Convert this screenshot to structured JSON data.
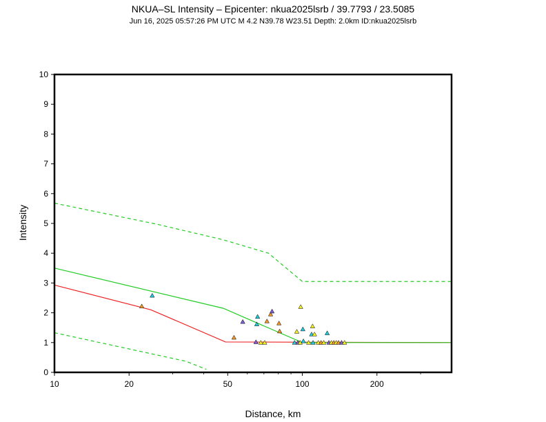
{
  "chart_data": {
    "type": "scatter",
    "title": "NKUA–SL Intensity –  Epicenter: nkua2025lsrb / 39.7793 / 23.5085",
    "subtitle": "Jun 16, 2025 05:57:26 PM UTC   M 4.2   N39.78 W23.51   Depth: 2.0km   ID:nkua2025lsrb",
    "xlabel": "Distance, km",
    "ylabel": "Intensity",
    "x_scale": "log",
    "xlim": [
      10,
      400
    ],
    "ylim": [
      0,
      10
    ],
    "x_ticks": [
      10,
      20,
      50,
      100,
      200
    ],
    "y_ticks": [
      0,
      1,
      2,
      3,
      4,
      5,
      6,
      7,
      8,
      9,
      10
    ],
    "grid": false,
    "colors": {
      "red_curve": "#ee2222",
      "green_curve": "#22cc22",
      "green_dashed": "#22cc22",
      "marker_cyan": "#22c8d8",
      "marker_yellow": "#f2ee22",
      "marker_orange": "#f0962a",
      "marker_purple": "#7f5fcf",
      "marker_outline": "#000000"
    },
    "series": [
      {
        "style": "red-solid",
        "x": [
          10,
          24.5,
          49,
          400
        ],
        "values": [
          2.93,
          2.1,
          1.02,
          1.0
        ]
      },
      {
        "style": "green-solid",
        "x": [
          10,
          48,
          100,
          400
        ],
        "values": [
          3.5,
          2.15,
          1.0,
          1.0
        ]
      },
      {
        "style": "green-dashed",
        "x": [
          10,
          26,
          48,
          73,
          100,
          400
        ],
        "values": [
          5.68,
          4.97,
          4.45,
          4.0,
          3.05,
          3.05
        ]
      },
      {
        "style": "green-dashed",
        "x": [
          10,
          34,
          41
        ],
        "values": [
          1.33,
          0.37,
          0.1
        ]
      }
    ],
    "points": [
      {
        "x": 22.5,
        "y": 2.22,
        "c": "orange"
      },
      {
        "x": 24.8,
        "y": 2.58,
        "c": "cyan"
      },
      {
        "x": 53,
        "y": 1.17,
        "c": "orange"
      },
      {
        "x": 57.5,
        "y": 1.7,
        "c": "purple"
      },
      {
        "x": 65,
        "y": 1.02,
        "c": "purple"
      },
      {
        "x": 65.5,
        "y": 1.62,
        "c": "cyan"
      },
      {
        "x": 66,
        "y": 1.87,
        "c": "cyan"
      },
      {
        "x": 68,
        "y": 1.0,
        "c": "yellow"
      },
      {
        "x": 70.5,
        "y": 1.0,
        "c": "yellow"
      },
      {
        "x": 72,
        "y": 1.72,
        "c": "orange"
      },
      {
        "x": 74.5,
        "y": 1.95,
        "c": "orange"
      },
      {
        "x": 75.5,
        "y": 2.05,
        "c": "purple"
      },
      {
        "x": 80.5,
        "y": 1.65,
        "c": "orange"
      },
      {
        "x": 81,
        "y": 1.38,
        "c": "orange"
      },
      {
        "x": 93,
        "y": 1.0,
        "c": "cyan"
      },
      {
        "x": 95,
        "y": 1.37,
        "c": "yellow"
      },
      {
        "x": 96,
        "y": 1.0,
        "c": "purple"
      },
      {
        "x": 98,
        "y": 1.0,
        "c": "yellow"
      },
      {
        "x": 98.5,
        "y": 2.2,
        "c": "yellow"
      },
      {
        "x": 100.5,
        "y": 1.45,
        "c": "cyan"
      },
      {
        "x": 101,
        "y": 1.05,
        "c": "cyan"
      },
      {
        "x": 106,
        "y": 1.0,
        "c": "yellow"
      },
      {
        "x": 109,
        "y": 1.28,
        "c": "cyan"
      },
      {
        "x": 110,
        "y": 1.55,
        "c": "yellow"
      },
      {
        "x": 110.5,
        "y": 1.0,
        "c": "cyan"
      },
      {
        "x": 112,
        "y": 1.28,
        "c": "yellow"
      },
      {
        "x": 116,
        "y": 1.0,
        "c": "yellow"
      },
      {
        "x": 119,
        "y": 1.0,
        "c": "orange"
      },
      {
        "x": 122,
        "y": 1.0,
        "c": "yellow"
      },
      {
        "x": 126,
        "y": 1.32,
        "c": "cyan"
      },
      {
        "x": 128,
        "y": 1.0,
        "c": "purple"
      },
      {
        "x": 131,
        "y": 1.0,
        "c": "yellow"
      },
      {
        "x": 134,
        "y": 1.0,
        "c": "orange"
      },
      {
        "x": 137,
        "y": 1.0,
        "c": "yellow"
      },
      {
        "x": 140,
        "y": 1.0,
        "c": "orange"
      },
      {
        "x": 144,
        "y": 1.0,
        "c": "purple"
      },
      {
        "x": 148,
        "y": 1.0,
        "c": "yellow"
      }
    ]
  }
}
